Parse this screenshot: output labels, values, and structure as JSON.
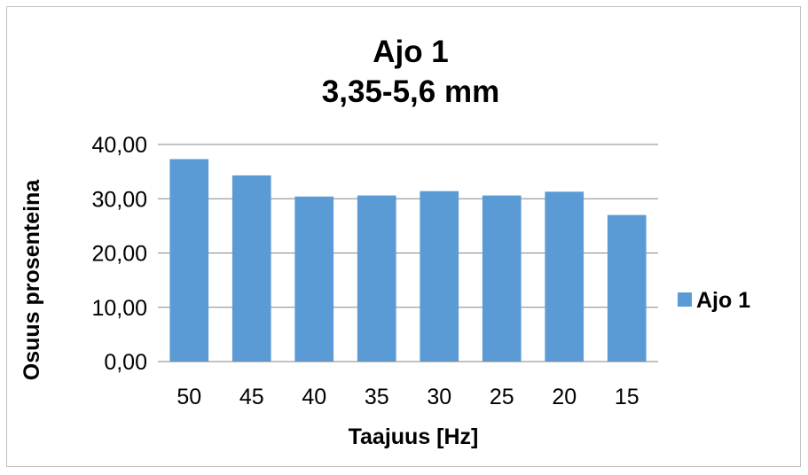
{
  "chart_data": {
    "type": "bar",
    "title_lines": [
      "Ajo 1",
      "3,35-5,6 mm"
    ],
    "xlabel": "Taajuus [Hz]",
    "ylabel": "Osuus prosenteina",
    "categories": [
      "50",
      "45",
      "40",
      "35",
      "30",
      "25",
      "20",
      "15"
    ],
    "series": [
      {
        "name": "Ajo 1",
        "values": [
          37.3,
          34.3,
          30.4,
          30.6,
          31.4,
          30.6,
          31.3,
          27.0
        ],
        "color": "#5b9bd5"
      }
    ],
    "ylim": [
      0,
      40
    ],
    "yticks": [
      "0,00",
      "10,00",
      "20,00",
      "30,00",
      "40,00"
    ],
    "grid": true,
    "legend_position": "right"
  }
}
